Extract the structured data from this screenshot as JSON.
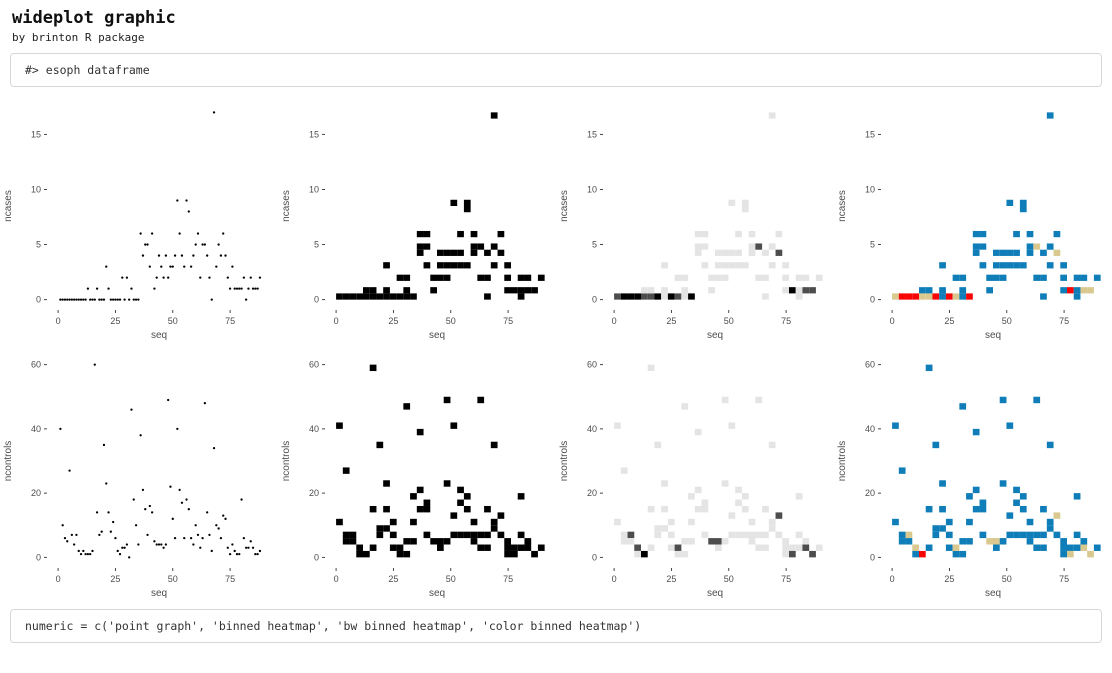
{
  "header": {
    "title": "wideplot graphic",
    "subtitle": "by brinton R package"
  },
  "code_top": {
    "text": "#> esoph dataframe"
  },
  "code_bottom": {
    "text": "numeric = c('point graph', 'binned heatmap', 'bw binned heatmap', 'color binned heatmap')"
  },
  "chart_data": {
    "type": "grid",
    "dataset_label": "esoph dataframe",
    "plot_types": [
      "point graph",
      "binned heatmap",
      "bw binned heatmap",
      "color binned heatmap"
    ],
    "bins": 30,
    "x": {
      "label": "seq",
      "ticks": [
        0,
        25,
        50,
        75
      ],
      "min": 1,
      "max": 88
    },
    "rows": [
      {
        "ylabel": "ncases",
        "yticks": [
          0,
          5,
          10,
          15
        ],
        "ymax": 17,
        "values": [
          0,
          0,
          0,
          0,
          0,
          0,
          0,
          0,
          0,
          0,
          0,
          0,
          1,
          0,
          0,
          0,
          1,
          0,
          0,
          0,
          3,
          1,
          0,
          0,
          0,
          0,
          0,
          2,
          0,
          2,
          0,
          1,
          0,
          0,
          0,
          6,
          4,
          5,
          5,
          3,
          6,
          1,
          2,
          4,
          3,
          2,
          4,
          2,
          3,
          3,
          4,
          9,
          6,
          4,
          3,
          9,
          8,
          3,
          4,
          5,
          6,
          2,
          5,
          5,
          4,
          2,
          0,
          17,
          3,
          5,
          4,
          6,
          4,
          2,
          1,
          3,
          1,
          1,
          1,
          1,
          2,
          0,
          1,
          2,
          1,
          1,
          1,
          2
        ]
      },
      {
        "ylabel": "ncontrols",
        "yticks": [
          0,
          20,
          40,
          60
        ],
        "ymax": 60,
        "values": [
          40,
          10,
          6,
          5,
          27,
          7,
          4,
          7,
          2,
          1,
          2,
          1,
          1,
          1,
          2,
          60,
          14,
          7,
          8,
          35,
          23,
          14,
          8,
          11,
          6,
          2,
          1,
          3,
          3,
          4,
          0,
          46,
          18,
          10,
          4,
          38,
          21,
          15,
          7,
          16,
          14,
          5,
          4,
          4,
          4,
          3,
          4,
          49,
          22,
          12,
          6,
          40,
          21,
          17,
          6,
          18,
          15,
          6,
          4,
          10,
          7,
          3,
          6,
          48,
          14,
          7,
          2,
          34,
          10,
          9,
          6,
          13,
          12,
          3,
          1,
          4,
          2,
          1,
          1,
          18,
          6,
          3,
          3,
          5,
          3,
          1,
          1,
          2
        ]
      }
    ],
    "colors": {
      "point": "#000000",
      "bin_fill": "#000000",
      "bw_scale": [
        "#E4E4E4",
        "#4D4D4D",
        "#000000"
      ],
      "color_scale": [
        "#0E7DB8",
        "#D9C98E",
        "#F80505"
      ],
      "tick_mark": "#333333",
      "axis_text": "#4d4d4d"
    }
  }
}
